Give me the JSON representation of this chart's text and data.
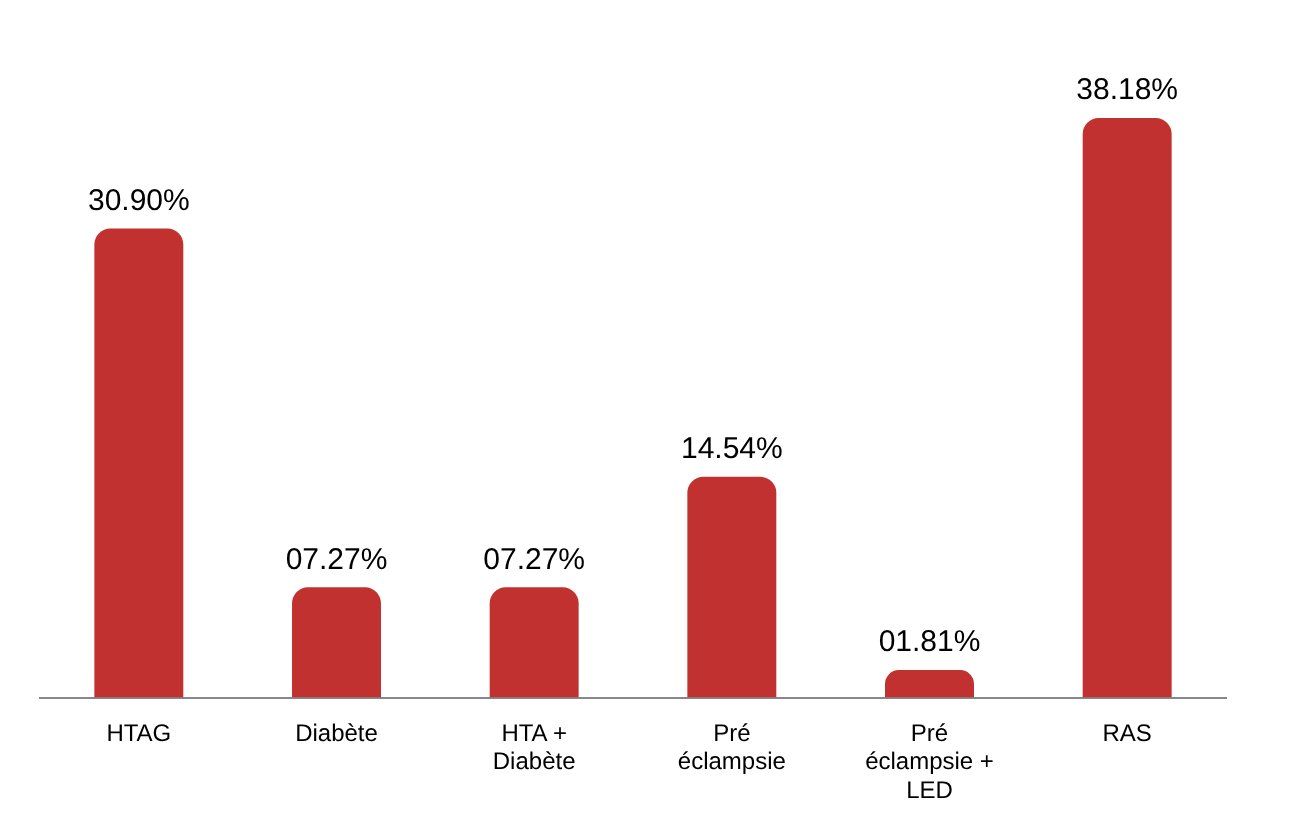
{
  "chart_data": {
    "type": "bar",
    "categories": [
      "HTAG",
      "Diabète",
      "HTA + Diabète",
      "Pré éclampsie",
      "Pré éclampsie + LED",
      "RAS"
    ],
    "values": [
      30.9,
      7.27,
      7.27,
      14.54,
      1.81,
      38.18
    ],
    "value_labels": [
      "30.90%",
      "07.27%",
      "07.27%",
      "14.54%",
      "01.81%",
      "38.18%"
    ],
    "color": "#c0312f",
    "grid": false,
    "legend": false
  }
}
